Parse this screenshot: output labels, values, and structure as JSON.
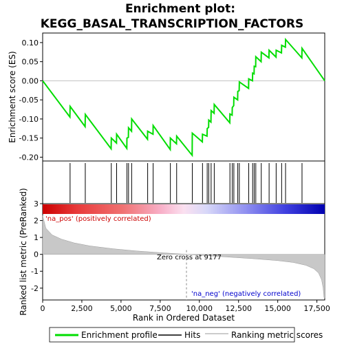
{
  "chart_data": {
    "type": "line",
    "title_line1": "Enrichment plot:",
    "title_line2": "KEGG_BASAL_TRANSCRIPTION_FACTORS",
    "es_ylabel": "Enrichment score (ES)",
    "metric_ylabel": "Ranked list metric (PreRanked)",
    "xlabel": "Rank in Ordered Dataset",
    "xlim": [
      0,
      18000
    ],
    "x_ticks": [
      0,
      2500,
      5000,
      7500,
      10000,
      12500,
      15000,
      17500
    ],
    "es_ylim": [
      -0.21,
      0.125
    ],
    "es_y_ticks": [
      0.1,
      0.05,
      0.0,
      -0.05,
      -0.1,
      -0.15,
      -0.2
    ],
    "metric_ylim": [
      -2.7,
      3.0
    ],
    "metric_y_ticks": [
      3,
      2,
      1,
      0,
      -1,
      -2
    ],
    "zero_cross_rank": 9177,
    "annotations": {
      "pos": "'na_pos' (positively correlated)",
      "neg": "'na_neg' (negatively correlated)",
      "zero_cross": "Zero cross at 9177"
    },
    "legend": [
      "Enrichment profile",
      "Hits",
      "Ranking metric scores"
    ],
    "hits": [
      1750,
      2720,
      4380,
      4720,
      5380,
      5480,
      5680,
      6700,
      7050,
      8150,
      8550,
      9550,
      10200,
      10500,
      10600,
      10750,
      10950,
      11950,
      12100,
      12200,
      12450,
      12550,
      13150,
      13400,
      13500,
      13600,
      13950,
      14450,
      14900,
      15250,
      15500,
      16550
    ],
    "es_profile": {
      "x": [
        0,
        1740,
        1750,
        2710,
        2720,
        4370,
        4380,
        4710,
        4720,
        5370,
        5380,
        5470,
        5480,
        5670,
        5680,
        6690,
        6700,
        7040,
        7050,
        8140,
        8150,
        8540,
        8550,
        9540,
        9550,
        10190,
        10200,
        10490,
        10500,
        10590,
        10600,
        10740,
        10750,
        10940,
        10950,
        11940,
        11950,
        12090,
        12100,
        12190,
        12200,
        12440,
        12450,
        12540,
        12550,
        13140,
        13150,
        13390,
        13400,
        13490,
        13500,
        13590,
        13600,
        13940,
        13950,
        14440,
        14450,
        14890,
        14900,
        15240,
        15250,
        15490,
        15500,
        16540,
        16550,
        18000
      ],
      "y": [
        0.0,
        -0.095,
        -0.067,
        -0.12,
        -0.088,
        -0.178,
        -0.15,
        -0.163,
        -0.14,
        -0.177,
        -0.15,
        -0.148,
        -0.123,
        -0.132,
        -0.1,
        -0.153,
        -0.132,
        -0.14,
        -0.117,
        -0.18,
        -0.15,
        -0.165,
        -0.145,
        -0.195,
        -0.137,
        -0.16,
        -0.14,
        -0.145,
        -0.125,
        -0.122,
        -0.103,
        -0.108,
        -0.078,
        -0.085,
        -0.062,
        -0.11,
        -0.087,
        -0.09,
        -0.07,
        -0.065,
        -0.043,
        -0.05,
        -0.028,
        -0.026,
        -0.003,
        -0.02,
        0.005,
        0.0,
        0.02,
        0.018,
        0.038,
        0.037,
        0.063,
        0.05,
        0.075,
        0.06,
        0.08,
        0.062,
        0.08,
        0.073,
        0.093,
        0.088,
        0.108,
        0.06,
        0.085,
        0.0
      ]
    },
    "metric_profile": {
      "x": [
        0,
        200,
        600,
        1200,
        2000,
        3000,
        4500,
        6000,
        7500,
        9177,
        10500,
        12000,
        13500,
        15000,
        16000,
        16800,
        17300,
        17600,
        17800,
        17900,
        17950,
        18000
      ],
      "y": [
        2.3,
        1.55,
        1.15,
        0.9,
        0.68,
        0.5,
        0.33,
        0.2,
        0.1,
        0.0,
        -0.08,
        -0.17,
        -0.26,
        -0.37,
        -0.48,
        -0.65,
        -0.85,
        -1.1,
        -1.5,
        -2.0,
        -2.55,
        -2.6
      ]
    }
  }
}
